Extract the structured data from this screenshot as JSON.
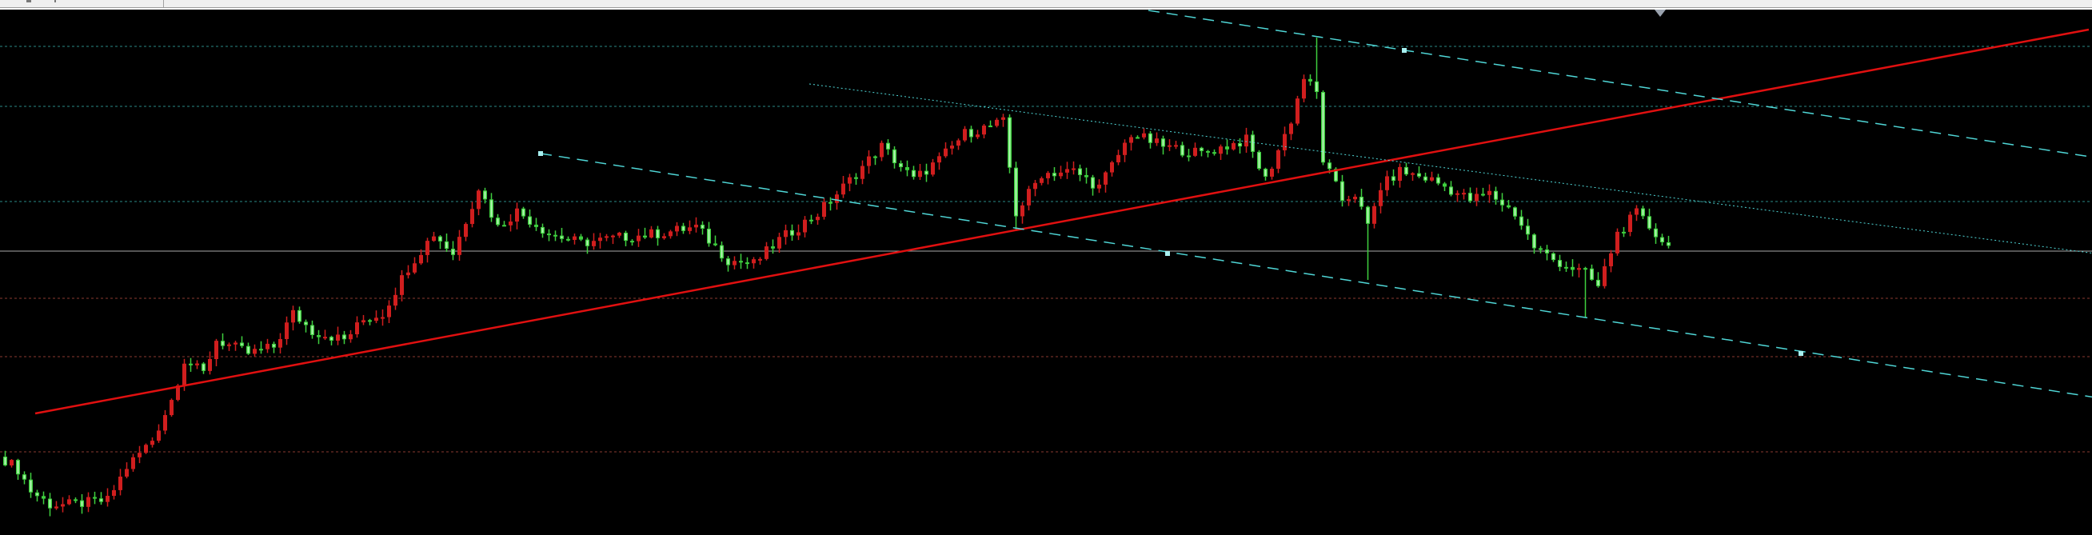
{
  "chart_data": {
    "type": "candlestick",
    "title": "",
    "xlabel": "",
    "ylabel": "",
    "grid": false,
    "ylim": [
      0,
      656
    ],
    "bars": 261,
    "up_color": "#d01e1e",
    "down_color": "#3ecf3e",
    "background": "#000000",
    "close_path": [
      [
        0,
        94
      ],
      [
        2,
        82
      ],
      [
        4,
        55
      ],
      [
        7,
        38
      ],
      [
        10,
        38
      ],
      [
        16,
        43
      ],
      [
        19,
        85
      ],
      [
        23,
        119
      ],
      [
        26,
        169
      ],
      [
        28,
        219
      ],
      [
        31,
        202
      ],
      [
        33,
        244
      ],
      [
        38,
        227
      ],
      [
        42,
        235
      ],
      [
        45,
        277
      ],
      [
        48,
        255
      ],
      [
        53,
        244
      ],
      [
        56,
        269
      ],
      [
        59,
        277
      ],
      [
        63,
        335
      ],
      [
        67,
        377
      ],
      [
        70,
        352
      ],
      [
        74,
        435
      ],
      [
        77,
        385
      ],
      [
        80,
        405
      ],
      [
        85,
        377
      ],
      [
        90,
        365
      ],
      [
        96,
        372
      ],
      [
        102,
        377
      ],
      [
        108,
        385
      ],
      [
        113,
        344
      ],
      [
        117,
        339
      ],
      [
        121,
        369
      ],
      [
        127,
        402
      ],
      [
        131,
        435
      ],
      [
        137,
        486
      ],
      [
        142,
        444
      ],
      [
        146,
        469
      ],
      [
        150,
        502
      ],
      [
        156,
        516
      ],
      [
        158,
        402
      ],
      [
        162,
        452
      ],
      [
        167,
        455
      ],
      [
        171,
        435
      ],
      [
        176,
        502
      ],
      [
        181,
        486
      ],
      [
        187,
        477
      ],
      [
        194,
        494
      ],
      [
        197,
        444
      ],
      [
        201,
        519
      ],
      [
        203,
        572
      ],
      [
        205,
        552
      ],
      [
        206,
        469
      ],
      [
        209,
        419
      ],
      [
        211,
        427
      ],
      [
        213,
        385
      ],
      [
        215,
        435
      ],
      [
        218,
        455
      ],
      [
        223,
        444
      ],
      [
        229,
        419
      ],
      [
        232,
        427
      ],
      [
        236,
        402
      ],
      [
        239,
        360
      ],
      [
        242,
        344
      ],
      [
        247,
        327
      ],
      [
        249,
        310
      ],
      [
        252,
        377
      ],
      [
        255,
        402
      ],
      [
        260,
        360
      ]
    ],
    "wick_extremes": [
      {
        "bar": 205,
        "high": 622
      },
      {
        "bar": 213,
        "low": 319
      },
      {
        "bar": 247,
        "low": 272
      },
      {
        "bar": 158,
        "low": 380
      }
    ],
    "level_lines": [
      {
        "price": 611,
        "style": "dotted",
        "color": "#2a8a86"
      },
      {
        "price": 536,
        "style": "dotted",
        "color": "#2a8a86"
      },
      {
        "price": 417,
        "style": "dotted",
        "color": "#2a8a86"
      },
      {
        "price": 355,
        "style": "solid",
        "color": "#a8a8a8"
      },
      {
        "price": 296,
        "style": "dotted",
        "color": "#8a3a30"
      },
      {
        "price": 223,
        "style": "dotted",
        "color": "#8a3a30"
      },
      {
        "price": 104,
        "style": "dotted",
        "color": "#8a3a30"
      }
    ],
    "trend_lines": [
      {
        "name": "",
        "from": [
          5,
          152
        ],
        "to": [
          326,
          632
        ],
        "color": "#e01010",
        "style": "solid"
      },
      {
        "name": "",
        "from": [
          179,
          656
        ],
        "to": [
          327,
          472
        ],
        "color": "#4fd6d6",
        "style": "dashed",
        "anchors": [
          [
            219,
            606
          ]
        ]
      },
      {
        "name": "",
        "from": [
          84,
          477
        ],
        "to": [
          327,
          172
        ],
        "color": "#4fd6d6",
        "style": "dashed",
        "anchors": [
          [
            84,
            477
          ],
          [
            182,
            352
          ],
          [
            281,
            227
          ]
        ]
      },
      {
        "name": "",
        "from": [
          126,
          564
        ],
        "to": [
          327,
          352
        ],
        "color": "#4fd6d6",
        "style": "dotted"
      }
    ],
    "marker": {
      "bar": 259,
      "icon": "triangle-down-icon",
      "color": "#9aa2ae"
    }
  }
}
